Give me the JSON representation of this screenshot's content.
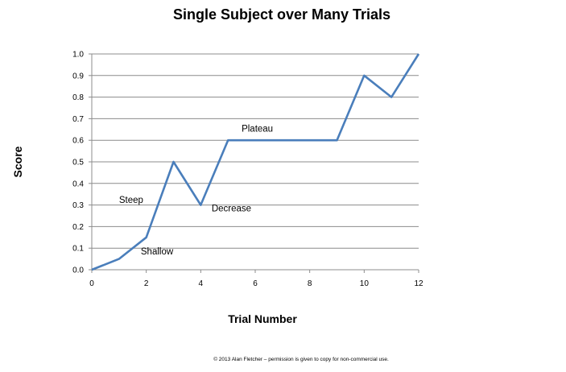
{
  "chart_data": {
    "type": "line",
    "title": "Single Subject over Many Trials",
    "xlabel": "Trial Number",
    "ylabel": "Score",
    "xlim": [
      0,
      12
    ],
    "ylim": [
      0,
      1.0
    ],
    "x_ticks": [
      0,
      2,
      4,
      6,
      8,
      10,
      12
    ],
    "y_ticks": [
      0.0,
      0.1,
      0.2,
      0.3,
      0.4,
      0.5,
      0.6,
      0.7,
      0.8,
      0.9,
      1.0
    ],
    "x_tick_labels": [
      "0",
      "2",
      "4",
      "6",
      "8",
      "10",
      "12"
    ],
    "y_tick_labels": [
      "0.0",
      "0.1",
      "0.2",
      "0.3",
      "0.4",
      "0.5",
      "0.6",
      "0.7",
      "0.8",
      "0.9",
      "1.0"
    ],
    "grid": true,
    "legend": "none",
    "series_color": "#4a7ebb",
    "series": [
      {
        "x": [
          0,
          1,
          2,
          3,
          4,
          5,
          6,
          7,
          8,
          9,
          10,
          11,
          12
        ],
        "values": [
          0.0,
          0.05,
          0.15,
          0.5,
          0.3,
          0.6,
          0.6,
          0.6,
          0.6,
          0.6,
          0.9,
          0.8,
          1.0
        ]
      }
    ],
    "annotations": [
      {
        "text": "Steep",
        "x": 1.0,
        "y": 0.31
      },
      {
        "text": "Shallow",
        "x": 1.8,
        "y": 0.07
      },
      {
        "text": "Decrease",
        "x": 4.4,
        "y": 0.27
      },
      {
        "text": "Plateau",
        "x": 5.5,
        "y": 0.64
      }
    ]
  },
  "footer": "© 2013 Alan Fletcher – permission is given to copy for non-commercial use."
}
